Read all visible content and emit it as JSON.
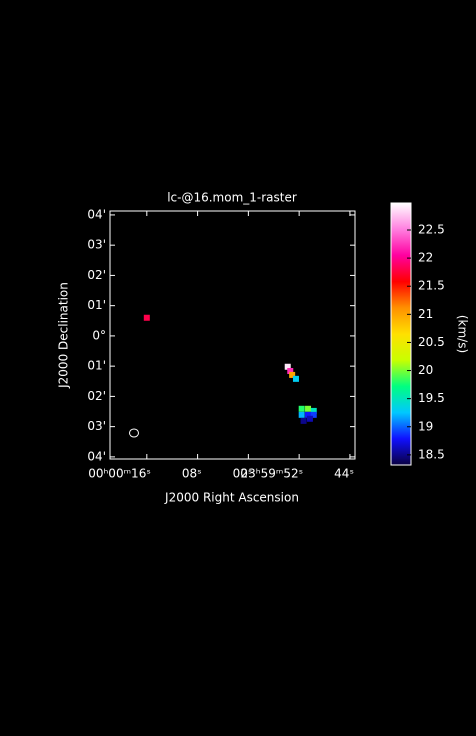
{
  "chart_data": {
    "type": "raster",
    "title": "lc-@16.mom_1-raster",
    "x_label": "J2000 Right Ascension",
    "y_label": "J2000 Declination",
    "colorbar_label": "(km/s)",
    "xlim": [
      21.8,
      -16.8
    ],
    "xticks": [
      {
        "value": 16,
        "label": "00ʰ00ᵐ16ˢ"
      },
      {
        "value": 8,
        "label": "08ˢ"
      },
      {
        "value": 0,
        "label": "00ˢ"
      },
      {
        "value": -8,
        "label": "23ʰ59ᵐ52ˢ"
      },
      {
        "value": -16,
        "label": "44ˢ"
      }
    ],
    "ylim": [
      -4.07,
      4.13
    ],
    "yticks": [
      {
        "value": 4,
        "label": "04'"
      },
      {
        "value": 3,
        "label": "03'"
      },
      {
        "value": 2,
        "label": "02'"
      },
      {
        "value": 1,
        "label": "01'"
      },
      {
        "value": 0,
        "label": "0°"
      },
      {
        "value": -1,
        "label": "01'"
      },
      {
        "value": -2,
        "label": "02'"
      },
      {
        "value": -3,
        "label": "03'"
      },
      {
        "value": -4,
        "label": "04'"
      }
    ],
    "clim": [
      18.32,
      22.98
    ],
    "cticks": [
      18.5,
      19,
      19.5,
      20,
      20.5,
      21,
      21.5,
      22,
      22.5
    ],
    "colormap": [
      "#0a0040",
      "#1010ff",
      "#00c8ff",
      "#00ff80",
      "#c8ff00",
      "#ffe000",
      "#ff9000",
      "#ff0000",
      "#ff00a0",
      "#ff80e0",
      "#ffffff"
    ],
    "x": [
      16,
      -6.2,
      -6.6,
      -6.9,
      -7.5,
      -8.4,
      -9.4,
      -10.3,
      -8.4,
      -9.4,
      -10.3,
      -8.7,
      -9.7
    ],
    "y": [
      0.6,
      -1.02,
      -1.16,
      -1.29,
      -1.42,
      -2.41,
      -2.41,
      -2.48,
      -2.61,
      -2.61,
      -2.61,
      -2.81,
      -2.74
    ],
    "values": [
      21.8,
      22.9,
      22.2,
      21.0,
      19.3,
      19.8,
      20.0,
      19.5,
      19.2,
      18.8,
      18.9,
      18.5,
      18.6
    ]
  }
}
